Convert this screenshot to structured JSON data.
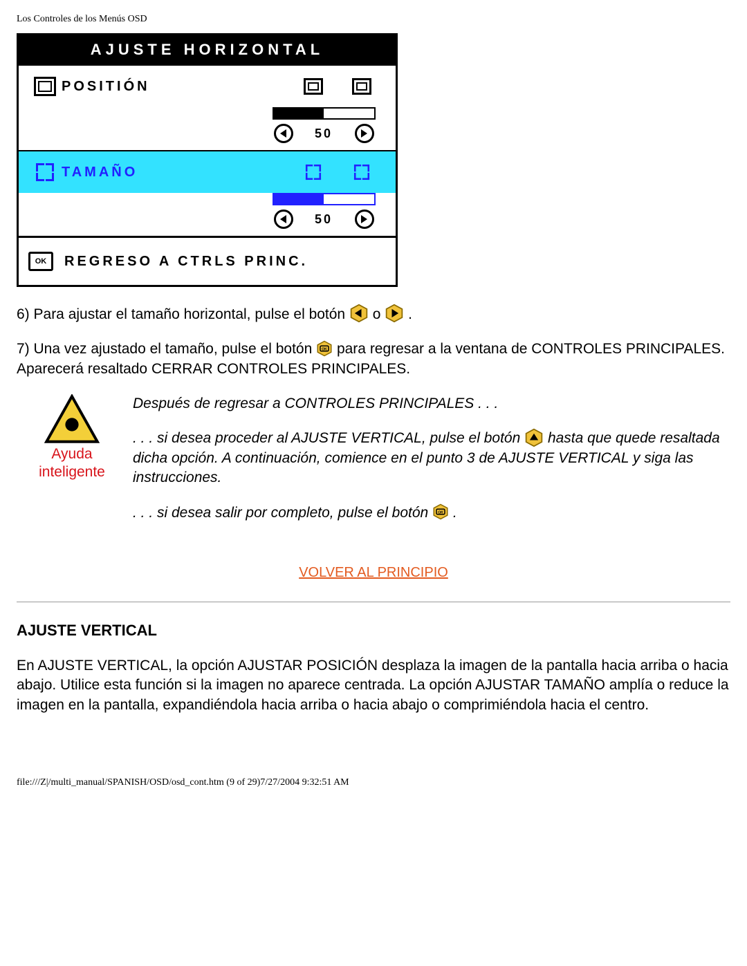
{
  "header": "Los Controles de los Menús OSD",
  "osd": {
    "title": "AJUSTE HORIZONTAL",
    "position_label": "POSITIÓN",
    "tamano_label": "TAMAÑO",
    "val1": "50",
    "val2": "50",
    "bar1_fill_pct": 50,
    "bar2_fill_pct": 50,
    "footer_label": "REGRESO A CTRLS PRINC."
  },
  "step6": {
    "a": "6) Para ajustar el tamaño horizontal, pulse el botón ",
    "b": " o ",
    "c": " ."
  },
  "step7": {
    "a": "7) Una vez ajustado el tamaño, pulse el botón ",
    "b": " para regresar a la ventana de CONTROLES PRINCIPALES. Aparecerá resaltado CERRAR CONTROLES PRINCIPALES."
  },
  "help": {
    "caption": "Ayuda inteligente",
    "p1": "Después de regresar a CONTROLES PRINCIPALES . . .",
    "p2a": ". . . si desea proceder al AJUSTE VERTICAL, pulse el botón ",
    "p2b": " hasta que quede resaltada dicha opción. A continuación, comience en el punto 3 de AJUSTE VERTICAL y siga las instrucciones.",
    "p3a": ". . . si desea salir por completo, pulse el botón ",
    "p3b": " ."
  },
  "toplink": "VOLVER AL PRINCIPIO",
  "section": {
    "title": "AJUSTE VERTICAL",
    "para": "En AJUSTE VERTICAL, la opción AJUSTAR POSICIÓN desplaza la imagen de la pantalla hacia arriba o hacia abajo. Utilice esta función si la imagen no aparece centrada. La opción AJUSTAR TAMAÑO amplía o reduce la imagen en la pantalla, expandiéndola hacia arriba o hacia abajo o comprimiéndola hacia el centro."
  },
  "footer_path": "file:///Z|/multi_manual/SPANISH/OSD/osd_cont.htm (9 of 29)7/27/2004 9:32:51 AM",
  "colors": {
    "highlight": "#33E2FF",
    "blue": "#2121ff",
    "link": "#E35B20",
    "red": "#D8141B",
    "hex_fill": "#F0C23A",
    "hex_stroke": "#8A6A00"
  }
}
